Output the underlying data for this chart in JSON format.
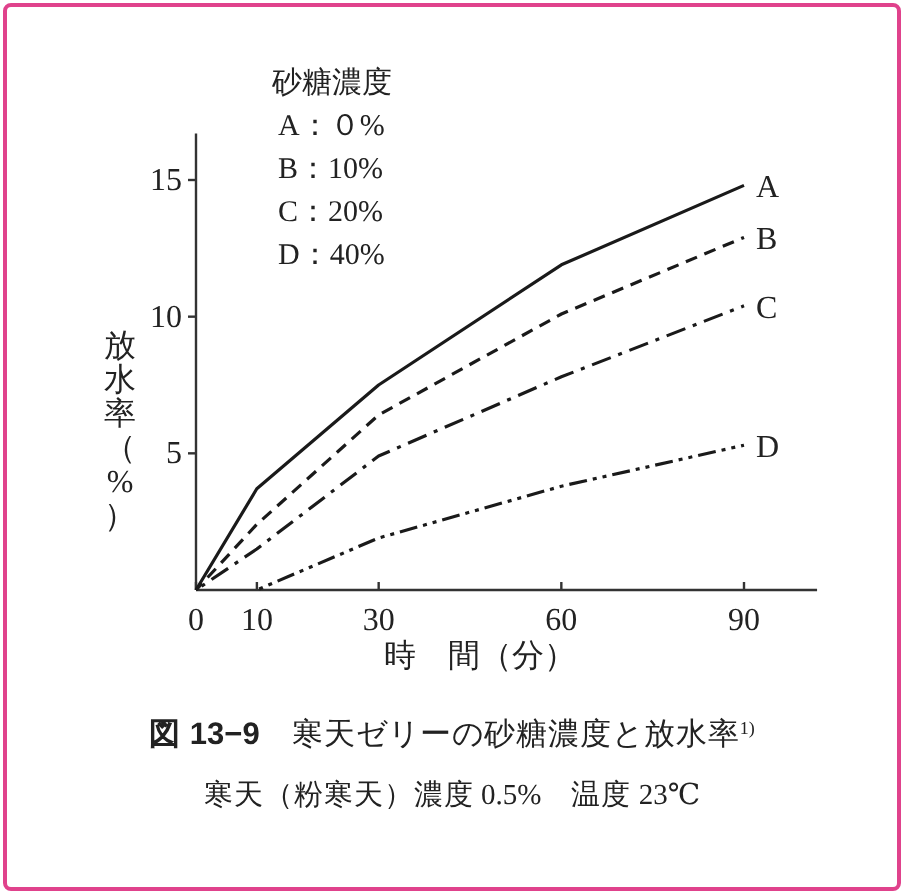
{
  "chart_data": {
    "type": "line",
    "title": "**図 13−9**　寒天ゼリーの砂糖濃度と放水率$^{1)}$",
    "subtitle": "寒天（粉寒天）濃度 0.5%　温度 23℃",
    "xlabel": "時　間（分）",
    "ylabel": "放水率（%）",
    "annotations": [
      "砂糖濃度",
      "A：０%",
      "B：10%",
      "C：20%",
      "D：40%"
    ],
    "xlim": [
      0,
      102
    ],
    "ylim": [
      0,
      16.7
    ],
    "xticks": [
      0,
      10,
      30,
      60,
      90
    ],
    "yticks": [
      5,
      10,
      15
    ],
    "grid": false,
    "legend": false,
    "marker": "none",
    "series": [
      {
        "name": "A",
        "color": "#1a1a1a",
        "line_style": "solid",
        "x": [
          0,
          10,
          30,
          60,
          90
        ],
        "values": [
          0,
          3.7,
          7.5,
          11.9,
          14.8
        ]
      },
      {
        "name": "B",
        "color": "#1a1a1a",
        "line_style": "dashed",
        "x": [
          0,
          10,
          30,
          60,
          90
        ],
        "values": [
          0,
          2.4,
          6.4,
          10.1,
          12.9
        ]
      },
      {
        "name": "C",
        "color": "#1a1a1a",
        "line_style": "dashdot",
        "x": [
          0,
          10,
          30,
          60,
          90
        ],
        "values": [
          0,
          1.5,
          4.9,
          7.8,
          10.4
        ]
      },
      {
        "name": "D",
        "color": "#1a1a1a",
        "line_style": "dashdotdot",
        "x": [
          10,
          30,
          60,
          90
        ],
        "values": [
          0,
          1.9,
          3.8,
          5.3
        ]
      }
    ]
  }
}
